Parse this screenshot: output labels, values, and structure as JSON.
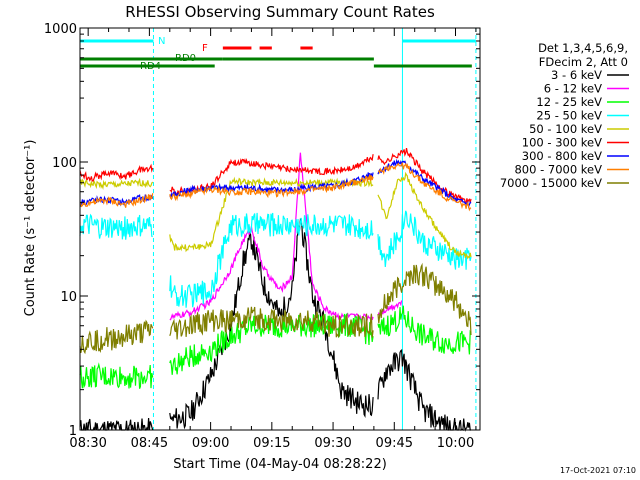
{
  "chart_data": {
    "type": "line",
    "title": "RHESSI Observing Summary Count Rates",
    "xlabel": "Start Time (04-May-04 08:28:22)",
    "ylabel": "Count Rate (s⁻¹ detector⁻¹)",
    "y_scale": "log",
    "ylim": [
      1,
      1000
    ],
    "xlim": [
      "08:28",
      "10:06"
    ],
    "x_ticks": [
      "08:30",
      "08:45",
      "09:00",
      "09:15",
      "09:30",
      "09:45",
      "10:00"
    ],
    "y_ticks": [
      "1",
      "10",
      "100",
      "1000"
    ],
    "legend_placement": "right",
    "legend_header": [
      "Det 1,3,4,5,6,9,",
      "FDecim 2, Att 0"
    ],
    "footer": "17-Oct-2021 07:10",
    "flags": {
      "night": {
        "label": "N",
        "color": "#00ffff",
        "intervals": [
          [
            "08:28",
            "08:46"
          ],
          [
            "09:47",
            "10:05"
          ]
        ]
      },
      "flare": {
        "label": "F",
        "color": "#ff0000",
        "intervals": [
          [
            "09:03",
            "09:10"
          ],
          [
            "09:12",
            "09:15"
          ],
          [
            "09:22",
            "09:25"
          ]
        ]
      },
      "rd0": {
        "label": "RD0",
        "color": "#007f00",
        "intervals": [
          [
            "08:28",
            "09:03"
          ],
          [
            "09:03",
            "09:40"
          ]
        ]
      },
      "rd4": {
        "label": "RD4",
        "color": "#007f00",
        "intervals": [
          [
            "08:28",
            "09:01"
          ],
          [
            "09:40",
            "10:04"
          ]
        ]
      }
    },
    "vertical_lines": [
      "08:28",
      "08:46",
      "09:47",
      "10:05"
    ],
    "gaps": [
      [
        "08:46",
        "08:50"
      ],
      [
        "09:40",
        "09:41"
      ],
      [
        "10:04",
        "10:05"
      ]
    ],
    "series": [
      {
        "name": "3 - 6 keV",
        "color": "#000000",
        "x": [
          "08:28",
          "08:46",
          "08:51",
          "08:55",
          "09:00",
          "09:05",
          "09:08",
          "09:10",
          "09:13",
          "09:17",
          "09:20",
          "09:22",
          "09:25",
          "09:28",
          "09:32",
          "09:36",
          "09:40",
          "09:43",
          "09:47",
          "09:52",
          "09:57",
          "10:00",
          "10:04"
        ],
        "values": [
          1.0,
          1.0,
          1.2,
          1.3,
          2.5,
          6,
          18,
          27,
          12,
          7,
          11,
          38,
          10,
          6,
          2,
          1.6,
          1.5,
          2.8,
          3.5,
          1.4,
          1.1,
          1.0,
          1.0
        ]
      },
      {
        "name": "6 - 12 keV",
        "color": "#ff00ff",
        "x": [
          "08:46",
          "08:51",
          "08:55",
          "09:00",
          "09:05",
          "09:08",
          "09:10",
          "09:13",
          "09:17",
          "09:20",
          "09:22",
          "09:25",
          "09:28",
          "09:32",
          "09:36",
          "09:40",
          "09:43",
          "09:47"
        ],
        "values": [
          6,
          7,
          7.5,
          9,
          16,
          26,
          32,
          16,
          11,
          14,
          120,
          12,
          8,
          7,
          7,
          7,
          8,
          9
        ]
      },
      {
        "name": "12 - 25 keV",
        "color": "#00ff00",
        "x": [
          "08:28",
          "08:46",
          "08:51",
          "08:55",
          "09:00",
          "09:05",
          "09:10",
          "09:15",
          "09:20",
          "09:25",
          "09:30",
          "09:35",
          "09:40",
          "09:43",
          "09:47",
          "09:52",
          "09:57",
          "10:00",
          "10:04"
        ],
        "values": [
          2.5,
          2.5,
          3,
          3.5,
          4,
          5,
          6,
          6,
          6,
          6,
          6,
          6,
          5,
          6,
          7,
          5,
          4.5,
          4.5,
          4.5
        ]
      },
      {
        "name": "25 - 50 keV",
        "color": "#00ffff",
        "x": [
          "08:28",
          "08:33",
          "08:38",
          "08:43",
          "08:46",
          "08:51",
          "08:55",
          "09:00",
          "09:05",
          "09:10",
          "09:15",
          "09:20",
          "09:25",
          "09:30",
          "09:35",
          "09:40",
          "09:43",
          "09:46",
          "09:48",
          "09:52",
          "09:57",
          "10:00",
          "10:04"
        ],
        "values": [
          34,
          32,
          32,
          33,
          32,
          10,
          10,
          11,
          34,
          34,
          34,
          34,
          34,
          34,
          33,
          32,
          19,
          28,
          42,
          25,
          21,
          19,
          19
        ]
      },
      {
        "name": "50 - 100 keV",
        "color": "#cccc00",
        "x": [
          "08:28",
          "08:33",
          "08:38",
          "08:43",
          "08:46",
          "08:51",
          "08:55",
          "09:00",
          "09:05",
          "09:10",
          "09:15",
          "09:20",
          "09:25",
          "09:30",
          "09:35",
          "09:40",
          "09:43",
          "09:46",
          "09:48",
          "09:52",
          "09:57",
          "10:00",
          "10:04"
        ],
        "values": [
          70,
          68,
          68,
          70,
          68,
          23,
          23,
          24,
          72,
          70,
          70,
          70,
          70,
          70,
          70,
          70,
          38,
          75,
          78,
          45,
          27,
          21,
          20
        ]
      },
      {
        "name": "100 - 300 keV",
        "color": "#ff0000",
        "x": [
          "08:28",
          "08:31",
          "08:35",
          "08:39",
          "08:43",
          "08:46",
          "08:51",
          "08:55",
          "09:00",
          "09:05",
          "09:10",
          "09:15",
          "09:20",
          "09:25",
          "09:30",
          "09:35",
          "09:40",
          "09:43",
          "09:46",
          "09:48",
          "09:52",
          "09:57",
          "10:00",
          "10:04"
        ],
        "values": [
          82,
          76,
          84,
          78,
          88,
          90,
          60,
          62,
          65,
          100,
          98,
          92,
          88,
          86,
          85,
          90,
          110,
          100,
          115,
          120,
          85,
          62,
          55,
          50
        ]
      },
      {
        "name": "300 - 800 keV",
        "color": "#0000ff",
        "x": [
          "08:28",
          "08:31",
          "08:35",
          "08:39",
          "08:43",
          "08:46",
          "08:51",
          "08:55",
          "09:00",
          "09:05",
          "09:10",
          "09:15",
          "09:20",
          "09:25",
          "09:30",
          "09:35",
          "09:40",
          "09:43",
          "09:46",
          "09:48",
          "09:52",
          "09:57",
          "10:00",
          "10:04"
        ],
        "values": [
          50,
          52,
          52,
          50,
          54,
          55,
          57,
          62,
          64,
          64,
          64,
          62,
          62,
          65,
          66,
          72,
          82,
          92,
          100,
          96,
          75,
          60,
          52,
          48
        ]
      },
      {
        "name": "800 - 7000 keV",
        "color": "#ff7f00",
        "x": [
          "08:28",
          "08:31",
          "08:35",
          "08:39",
          "08:43",
          "08:46",
          "08:51",
          "08:55",
          "09:00",
          "09:05",
          "09:10",
          "09:15",
          "09:20",
          "09:25",
          "09:30",
          "09:35",
          "09:40",
          "09:43",
          "09:46",
          "09:48",
          "09:52",
          "09:57",
          "10:00",
          "10:04"
        ],
        "values": [
          48,
          50,
          52,
          48,
          52,
          56,
          55,
          58,
          62,
          60,
          60,
          58,
          60,
          62,
          64,
          70,
          78,
          90,
          95,
          92,
          70,
          56,
          50,
          46
        ]
      },
      {
        "name": "7000 - 15000 keV",
        "color": "#7f7f00",
        "x": [
          "08:28",
          "08:35",
          "08:40",
          "08:46",
          "08:51",
          "08:55",
          "09:00",
          "09:05",
          "09:10",
          "09:15",
          "09:20",
          "09:25",
          "09:30",
          "09:35",
          "09:40",
          "09:43",
          "09:47",
          "09:50",
          "09:52",
          "09:57",
          "10:00",
          "10:04"
        ],
        "values": [
          4.5,
          4.8,
          5,
          5.5,
          5.5,
          6,
          6.5,
          6.5,
          7,
          6.5,
          6.5,
          6.5,
          6,
          6,
          6,
          9,
          13,
          15,
          14,
          11,
          9,
          6
        ]
      }
    ]
  }
}
